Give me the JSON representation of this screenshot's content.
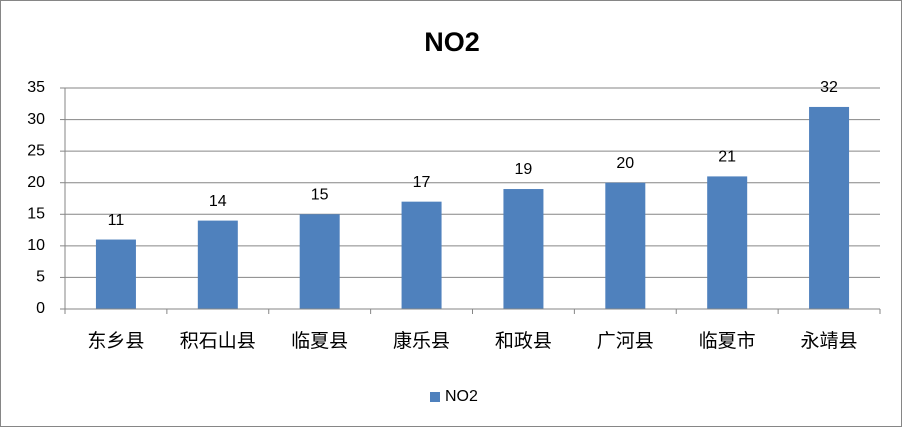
{
  "chart_data": {
    "type": "bar",
    "title": "NO2",
    "categories": [
      "东乡县",
      "积石山县",
      "临夏县",
      "康乐县",
      "和政县",
      "广河县",
      "临夏市",
      "永靖县"
    ],
    "series": [
      {
        "name": "NO2",
        "color": "#4f81bd",
        "values": [
          11,
          14,
          15,
          17,
          19,
          20,
          21,
          32
        ]
      }
    ],
    "ylim": [
      0,
      35
    ],
    "yticks": [
      0,
      5,
      10,
      15,
      20,
      25,
      30,
      35
    ],
    "grid": true,
    "legend": "bottom",
    "data_labels": true
  }
}
